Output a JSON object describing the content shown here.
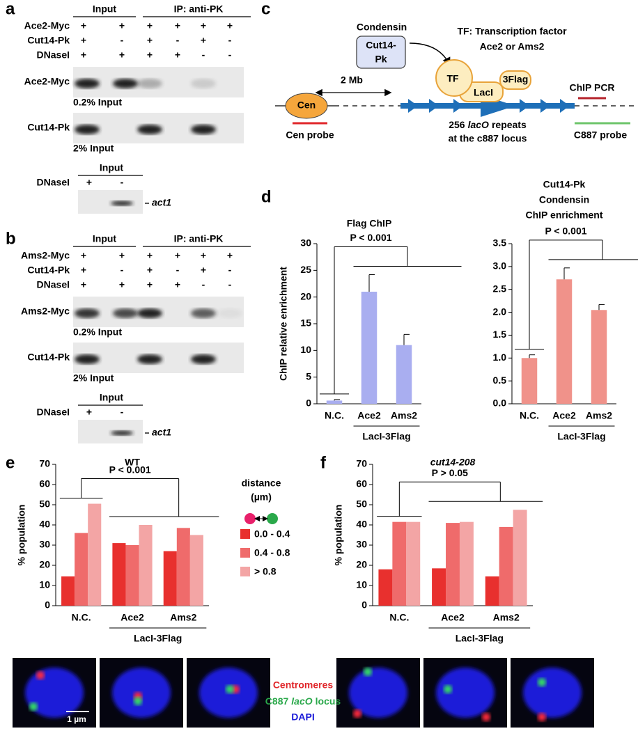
{
  "panel_labels": [
    "a",
    "b",
    "c",
    "d",
    "e",
    "f"
  ],
  "blots": [
    {
      "headers": [
        "Input",
        "IP: anti-PK"
      ],
      "rows": [
        {
          "name": "Ace2-Myc",
          "signs": [
            "+",
            "+",
            "+",
            "+",
            "+",
            "+"
          ]
        },
        {
          "name": "Cut14-Pk",
          "signs": [
            "+",
            "-",
            "+",
            "-",
            "+",
            "-"
          ]
        },
        {
          "name": "DNaseI",
          "signs": [
            "+",
            "+",
            "+",
            "+",
            "-",
            "-"
          ]
        }
      ],
      "bands": [
        {
          "name": "Ace2-Myc",
          "note": "0.2% Input"
        },
        {
          "name": "Cut14-Pk",
          "note": "2% Input"
        }
      ],
      "control": {
        "header": "Input",
        "row": "DNaseI",
        "signs": [
          "+",
          "-"
        ],
        "gene": "act1"
      }
    },
    {
      "headers": [
        "Input",
        "IP: anti-PK"
      ],
      "rows": [
        {
          "name": "Ams2-Myc",
          "signs": [
            "+",
            "+",
            "+",
            "+",
            "+",
            "+"
          ]
        },
        {
          "name": "Cut14-Pk",
          "signs": [
            "+",
            "-",
            "+",
            "-",
            "+",
            "-"
          ]
        },
        {
          "name": "DNaseI",
          "signs": [
            "+",
            "+",
            "+",
            "+",
            "-",
            "-"
          ]
        }
      ],
      "bands": [
        {
          "name": "Ams2-Myc",
          "note": "0.2% Input"
        },
        {
          "name": "Cut14-Pk",
          "note": "2% Input"
        }
      ],
      "control": {
        "header": "Input",
        "row": "DNaseI",
        "signs": [
          "+",
          "-"
        ],
        "gene": "act1"
      }
    }
  ],
  "diagram": {
    "condensin": "Condensin",
    "cut14": [
      "Cut14-",
      "Pk"
    ],
    "tf_def": [
      "TF: Transcription factor",
      "Ace2 or Ams2"
    ],
    "tf": "TF",
    "laci": "LacI",
    "flag": "3Flag",
    "distance": "2 Mb",
    "cen": "Cen",
    "chip_pcr": "ChIP PCR",
    "repeats": [
      "256",
      "lacO",
      "repeats"
    ],
    "locus": "at the c887 locus",
    "cen_probe": "Cen probe",
    "c887_probe": "C887 probe"
  },
  "chart_data": [
    {
      "type": "bar",
      "title": [
        "Flag ChIP"
      ],
      "ylabel": "ChIP relative enrichment",
      "categories": [
        "N.C.",
        "Ace2",
        "Ams2"
      ],
      "values": [
        0.6,
        21,
        11
      ],
      "errors": [
        0.2,
        3.2,
        2
      ],
      "color": "#a9aef0",
      "ylim": [
        0,
        30
      ],
      "yticks": [
        0,
        5,
        10,
        15,
        20,
        25,
        30
      ],
      "group_label": "LacI-3Flag",
      "annotation": "P < 0.001"
    },
    {
      "type": "bar",
      "title": [
        "Cut14-Pk",
        "Condensin",
        "ChIP enrichment"
      ],
      "categories": [
        "N.C.",
        "Ace2",
        "Ams2"
      ],
      "values": [
        1.0,
        2.72,
        2.05
      ],
      "errors": [
        0.07,
        0.25,
        0.12
      ],
      "color": "#f0928a",
      "ylim": [
        0,
        3.5
      ],
      "yticks": [
        {
          "value": 0,
          "label": "0.0"
        },
        0.5,
        {
          "value": 1,
          "label": "1.0"
        },
        1.5,
        {
          "value": 2,
          "label": "2.0"
        },
        2.5,
        {
          "value": 3,
          "label": "3.0"
        },
        3.5
      ],
      "group_label": "LacI-3Flag",
      "annotation": "P < 0.001"
    },
    {
      "type": "grouped-bar",
      "title": [
        "WT"
      ],
      "ylabel": "% population",
      "categories": [
        "N.C.",
        "Ace2",
        "Ams2"
      ],
      "series": [
        {
          "name": "0.0 - 0.4",
          "color": "#e8302e",
          "values": [
            14.5,
            31,
            27
          ]
        },
        {
          "name": "0.4 - 0.8",
          "color": "#ef6b6b",
          "values": [
            36,
            30,
            38.5
          ]
        },
        {
          "name": "> 0.8",
          "color": "#f3a5a5",
          "values": [
            50.5,
            40,
            35
          ]
        }
      ],
      "ylim": [
        0,
        70
      ],
      "yticks": [
        0,
        10,
        20,
        30,
        40,
        50,
        60,
        70
      ],
      "legend": "right",
      "legend_title": [
        "distance",
        "(µm)"
      ],
      "group_label": "LacI-3Flag",
      "annotation": "P < 0.001"
    },
    {
      "type": "grouped-bar",
      "title": [
        "cut14-208"
      ],
      "title_italic": true,
      "ylabel": "% population",
      "categories": [
        "N.C.",
        "Ace2",
        "Ams2"
      ],
      "series": [
        {
          "color": "#e8302e",
          "values": [
            18,
            18.5,
            14.5
          ]
        },
        {
          "color": "#ef6b6b",
          "values": [
            41.5,
            41,
            39
          ]
        },
        {
          "color": "#f3a5a5",
          "values": [
            41.5,
            41.5,
            47.5
          ]
        }
      ],
      "ylim": [
        0,
        70
      ],
      "yticks": [
        0,
        10,
        20,
        30,
        40,
        50,
        60,
        70
      ],
      "group_label": "LacI-3Flag",
      "annotation": "P > 0.05"
    }
  ],
  "micrographs": {
    "centromeres": "Centromeres",
    "locus": [
      "C887",
      "lacO",
      "locus"
    ],
    "dapi": "DAPI",
    "scale_bar": "1 µm"
  }
}
